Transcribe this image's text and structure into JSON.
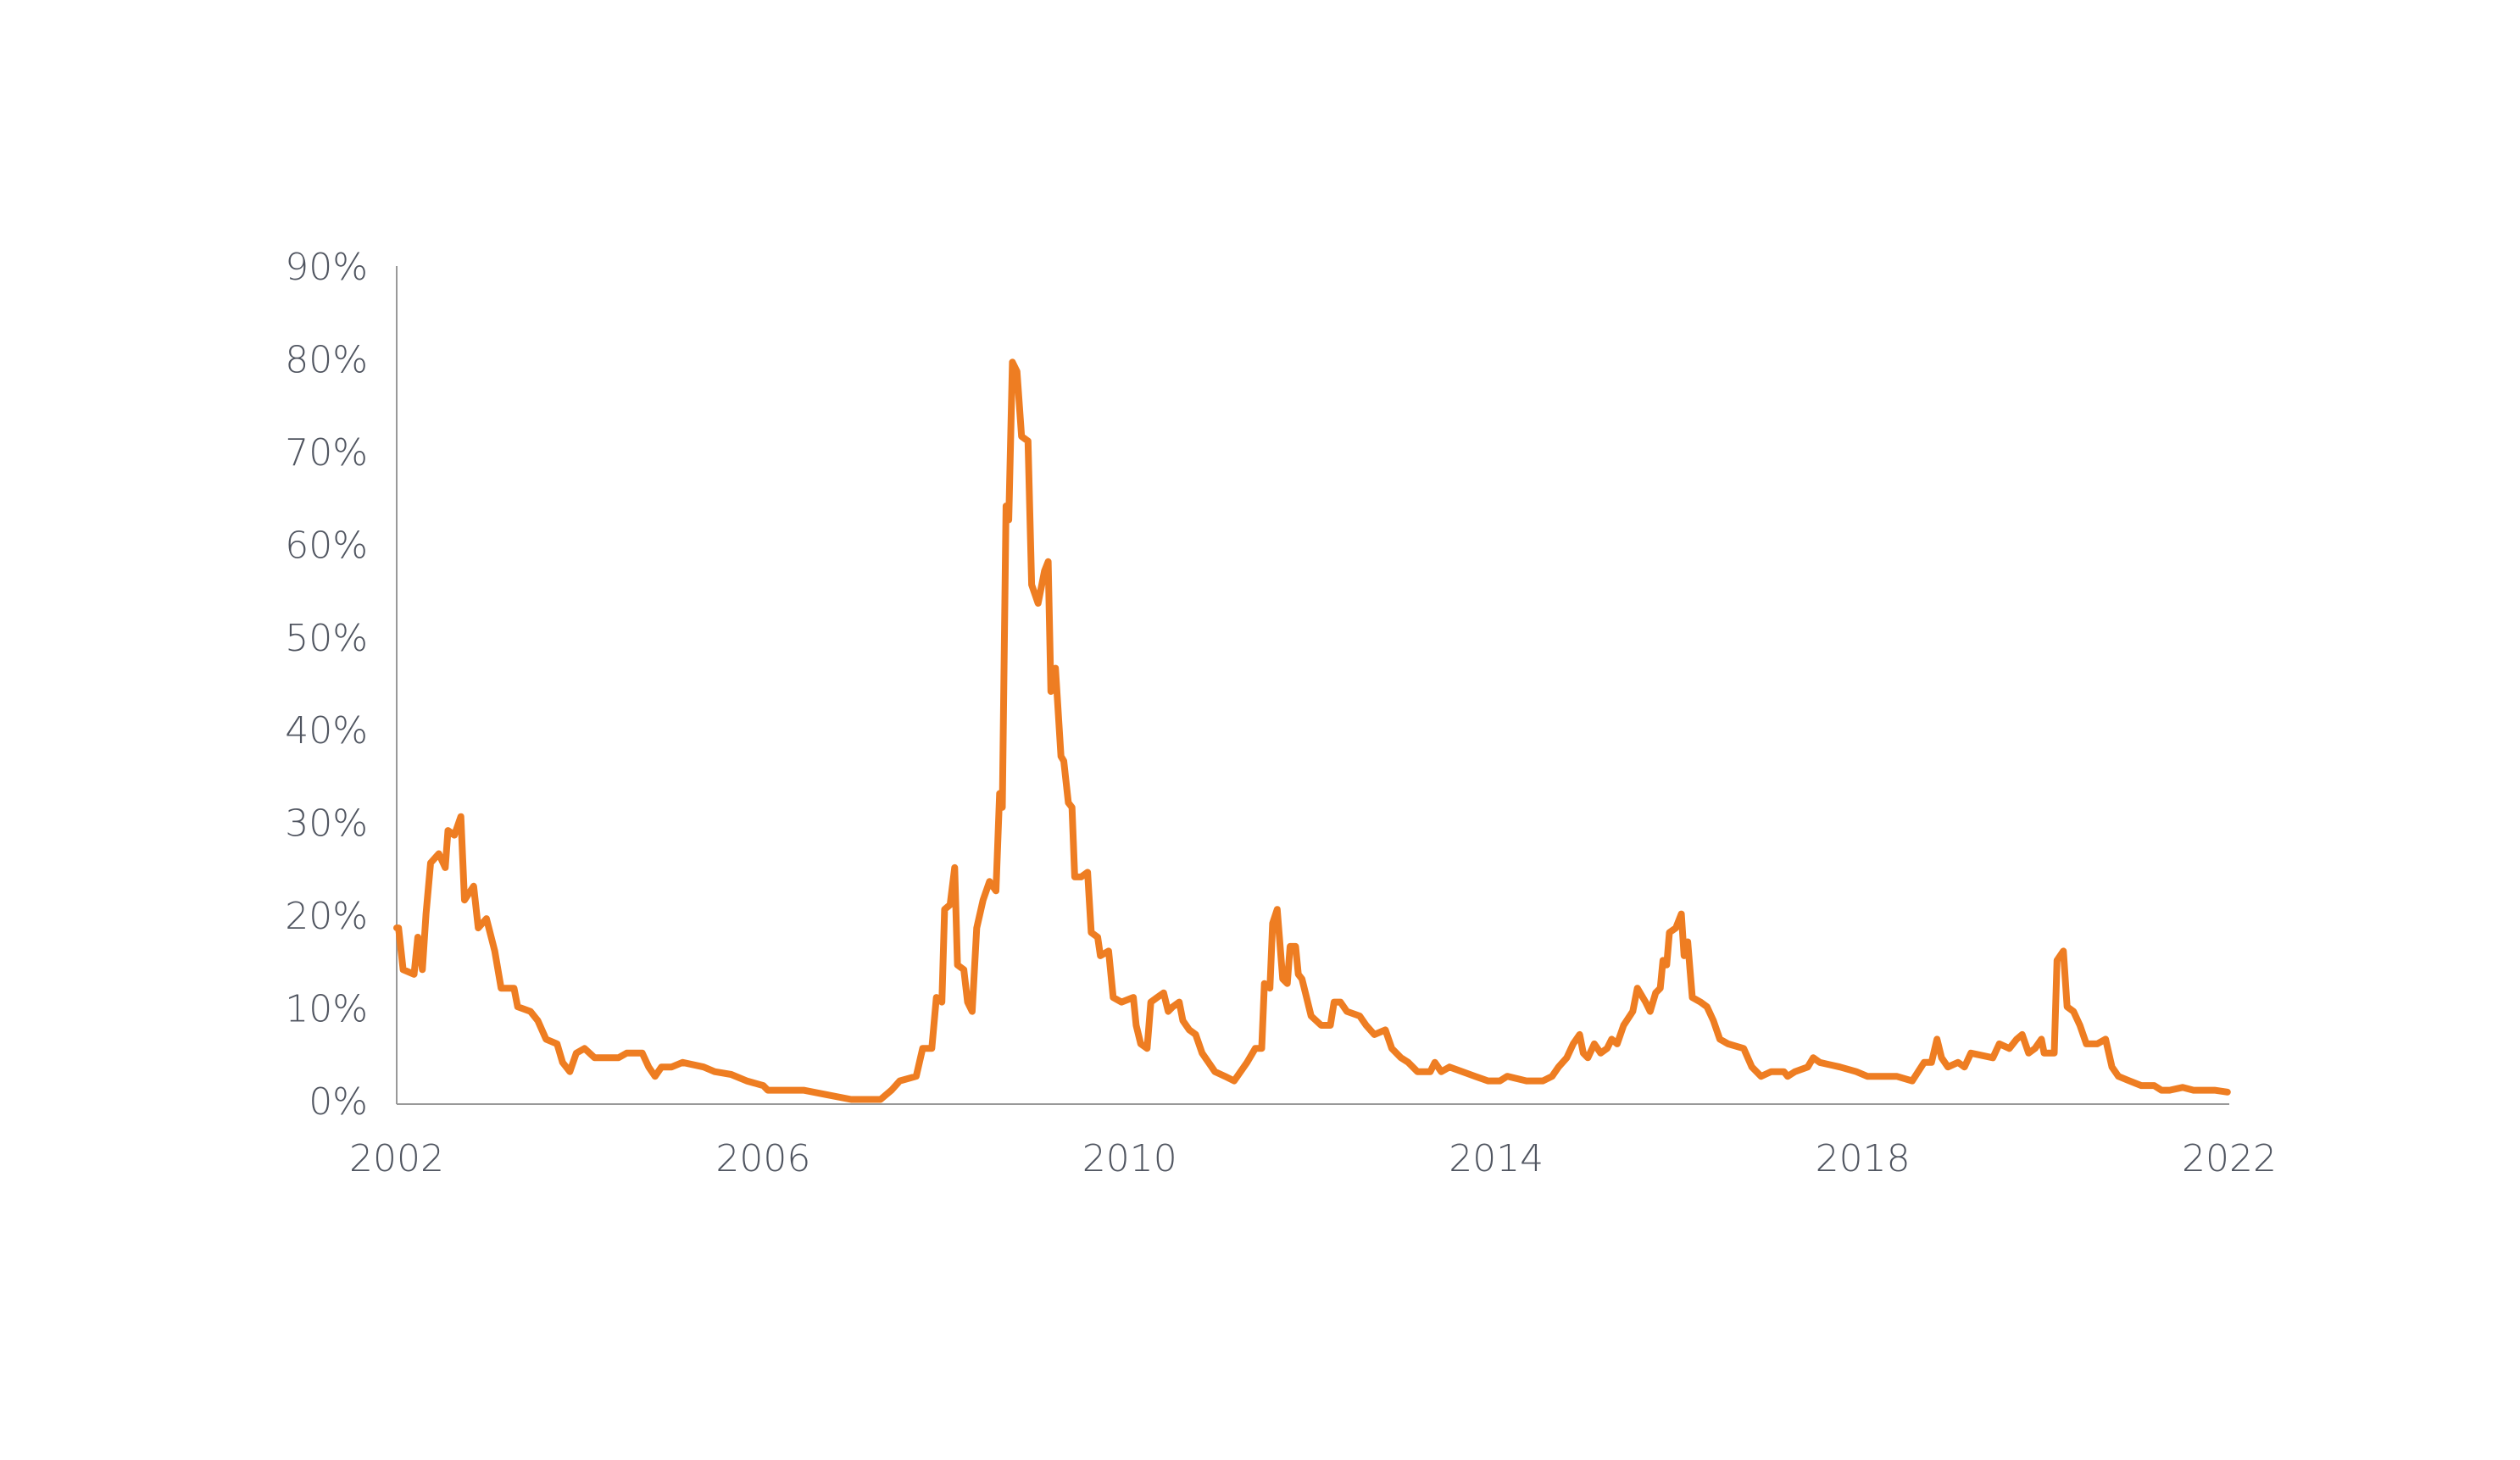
{
  "chart_data": {
    "type": "line",
    "color": "#ee7d22",
    "x": [
      2002.0,
      2002.02,
      2002.07,
      2002.19,
      2002.23,
      2002.28,
      2002.32,
      2002.37,
      2002.46,
      2002.53,
      2002.56,
      2002.63,
      2002.7,
      2002.74,
      2002.84,
      2002.89,
      2002.98,
      2003.07,
      2003.14,
      2003.28,
      2003.32,
      2003.46,
      2003.54,
      2003.63,
      2003.75,
      2003.81,
      2003.89,
      2003.96,
      2004.05,
      2004.16,
      2004.42,
      2004.51,
      2004.68,
      2004.75,
      2004.82,
      2004.89,
      2005.0,
      2005.12,
      2005.35,
      2005.47,
      2005.65,
      2005.82,
      2006.0,
      2006.05,
      2006.26,
      2006.44,
      2006.7,
      2006.96,
      2007.28,
      2007.4,
      2007.49,
      2007.67,
      2007.74,
      2007.84,
      2007.89,
      2007.95,
      2007.98,
      2008.04,
      2008.09,
      2008.12,
      2008.19,
      2008.23,
      2008.28,
      2008.33,
      2008.4,
      2008.47,
      2008.54,
      2008.58,
      2008.61,
      2008.65,
      2008.68,
      2008.72,
      2008.77,
      2008.82,
      2008.89,
      2008.93,
      2009.0,
      2009.07,
      2009.11,
      2009.14,
      2009.19,
      2009.25,
      2009.28,
      2009.33,
      2009.37,
      2009.4,
      2009.47,
      2009.54,
      2009.58,
      2009.65,
      2009.68,
      2009.77,
      2009.82,
      2009.91,
      2010.04,
      2010.07,
      2010.12,
      2010.19,
      2010.23,
      2010.3,
      2010.37,
      2010.42,
      2010.47,
      2010.54,
      2010.58,
      2010.65,
      2010.72,
      2010.79,
      2010.86,
      2010.93,
      2011.04,
      2011.14,
      2011.21,
      2011.28,
      2011.37,
      2011.44,
      2011.47,
      2011.53,
      2011.56,
      2011.61,
      2011.67,
      2011.72,
      2011.75,
      2011.81,
      2011.84,
      2011.88,
      2011.93,
      2011.98,
      2012.09,
      2012.19,
      2012.23,
      2012.3,
      2012.37,
      2012.51,
      2012.58,
      2012.67,
      2012.79,
      2012.86,
      2012.96,
      2013.04,
      2013.14,
      2013.28,
      2013.33,
      2013.4,
      2013.49,
      2013.63,
      2013.77,
      2013.91,
      2014.04,
      2014.12,
      2014.33,
      2014.51,
      2014.61,
      2014.68,
      2014.77,
      2014.84,
      2014.91,
      2014.95,
      2015.0,
      2015.07,
      2015.14,
      2015.21,
      2015.26,
      2015.32,
      2015.39,
      2015.49,
      2015.54,
      2015.63,
      2015.68,
      2015.74,
      2015.79,
      2015.82,
      2015.86,
      2015.89,
      2015.96,
      2016.02,
      2016.05,
      2016.09,
      2016.14,
      2016.23,
      2016.3,
      2016.37,
      2016.44,
      2016.53,
      2016.7,
      2016.79,
      2016.89,
      2017.0,
      2017.14,
      2017.18,
      2017.26,
      2017.4,
      2017.46,
      2017.53,
      2017.75,
      2017.93,
      2018.05,
      2018.37,
      2018.54,
      2018.67,
      2018.75,
      2018.81,
      2018.86,
      2018.93,
      2019.04,
      2019.11,
      2019.18,
      2019.42,
      2019.49,
      2019.6,
      2019.68,
      2019.74,
      2019.81,
      2019.88,
      2019.95,
      2019.98,
      2020.09,
      2020.12,
      2020.19,
      2020.23,
      2020.3,
      2020.37,
      2020.44,
      2020.56,
      2020.65,
      2020.72,
      2020.79,
      2020.91,
      2021.04,
      2021.18,
      2021.26,
      2021.35,
      2021.49,
      2021.61,
      2021.7,
      2021.84,
      2021.98
    ],
    "values": [
      19,
      19,
      14.5,
      14,
      18,
      14.5,
      20.5,
      26,
      27,
      25.5,
      29.5,
      29,
      31,
      22,
      23.5,
      19,
      20,
      16.5,
      12.5,
      12.5,
      10.5,
      10,
      9,
      7,
      6.5,
      4.5,
      3.5,
      5.5,
      6,
      5,
      5,
      5.5,
      5.5,
      4,
      3,
      4,
      4,
      4.5,
      4,
      3.5,
      3.2,
      2.5,
      2,
      1.5,
      1.5,
      1.5,
      1,
      0.5,
      0.5,
      1.5,
      2.5,
      3,
      6,
      6,
      11.5,
      11,
      21,
      21.5,
      25.5,
      15,
      14.5,
      11,
      10,
      19,
      22,
      24,
      23,
      33.5,
      32,
      64.5,
      63,
      80,
      79,
      72,
      71.5,
      56,
      54,
      57.5,
      58.5,
      44.5,
      47,
      37.5,
      37,
      32.5,
      32,
      24.5,
      24.5,
      25,
      18.5,
      18,
      16,
      16.5,
      11.5,
      11,
      11.5,
      8.5,
      6.5,
      6,
      11,
      11.5,
      12,
      10,
      10.5,
      11,
      9,
      8,
      7.5,
      5.5,
      4.5,
      3.5,
      3,
      2.5,
      3.5,
      4.5,
      6,
      6,
      13,
      12.5,
      19.5,
      21,
      13.5,
      13,
      17,
      17,
      14,
      13.5,
      11.5,
      9.5,
      8.5,
      8.5,
      11,
      11,
      10,
      9.5,
      8.5,
      7.5,
      8,
      6,
      5,
      4.5,
      3.5,
      3.5,
      4.5,
      3.5,
      4,
      3.5,
      3,
      2.5,
      2.5,
      3,
      2.5,
      2.5,
      3,
      4,
      5,
      6.5,
      7.5,
      5.5,
      5,
      6.5,
      5.5,
      6,
      7,
      6.5,
      8.5,
      10,
      12.5,
      11,
      10,
      12,
      12.5,
      15.5,
      15,
      18.5,
      19,
      20.5,
      16,
      17.5,
      11.5,
      11,
      10.5,
      9,
      7,
      6.5,
      6,
      4,
      3,
      3.5,
      3.5,
      3,
      3.5,
      4,
      5,
      4.5,
      4,
      3.5,
      3,
      3,
      2.5,
      4.5,
      4.5,
      7,
      5,
      4,
      4.5,
      4,
      5.5,
      5,
      6.5,
      6,
      7,
      7.5,
      5.5,
      6,
      7,
      5.5,
      5.5,
      15.5,
      16.5,
      10.5,
      10,
      8.5,
      6.5,
      6.5,
      7,
      4,
      3,
      2.5,
      2,
      2,
      1.5,
      1.5,
      1.8,
      1.5,
      1.5,
      1.5,
      1.3
    ],
    "xlim": [
      2002,
      2022
    ],
    "xticks": [
      2002,
      2006,
      2010,
      2014,
      2018,
      2022
    ],
    "ylim": [
      0,
      90
    ],
    "yticks": [
      {
        "value": 0,
        "label": "0%"
      },
      {
        "value": 10,
        "label": "10%"
      },
      {
        "value": 20,
        "label": "20%"
      },
      {
        "value": 30,
        "label": "30%"
      },
      {
        "value": 40,
        "label": "40%"
      },
      {
        "value": 50,
        "label": "50%"
      },
      {
        "value": 60,
        "label": "60%"
      },
      {
        "value": 70,
        "label": "70%"
      },
      {
        "value": 80,
        "label": "80%"
      },
      {
        "value": 90,
        "label": "90%"
      }
    ]
  }
}
